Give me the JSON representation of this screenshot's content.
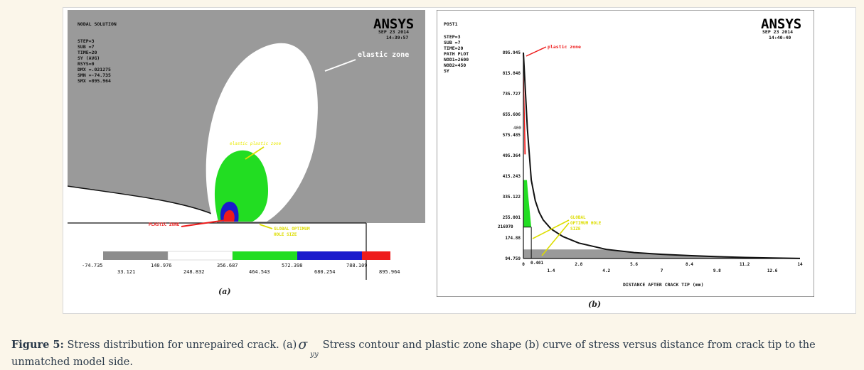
{
  "panel_a": {
    "header": [
      "NODAL SOLUTION",
      "STEP=3",
      "SUB =7",
      "TIME=20",
      "SY       (AVG)",
      "RSYS=0",
      "DMX =.021275",
      "SMN =-74.735",
      "SMX =895.964"
    ],
    "logo": "ANSYS",
    "date": "SEP 23 2014",
    "time": "14:39:57",
    "labels": {
      "elastic_zone": "elastic zone",
      "elastic_plastic_zone": "elastic plastic zone",
      "plastic_zone": "PLASTIC ZONE",
      "hole_size": [
        "GLOBAL OPTIMUM",
        "HOLE SIZE"
      ]
    },
    "legend_top": [
      "-74.735",
      "140.976",
      "356.687",
      "572.398",
      "788.109"
    ],
    "legend_bottom": [
      "33.121",
      "248.832",
      "464.543",
      "680.254",
      "895.964"
    ],
    "legend_colors": [
      "#8c8c8c",
      "#ffffff",
      "#22dd22",
      "#1a1acc",
      "#ee1c1c"
    ],
    "panel_label": "(a)"
  },
  "panel_b": {
    "header": [
      "POST1",
      "STEP=3",
      "SUB =7",
      "TIME=20",
      "PATH PLOT",
      "NOD1=2600",
      "NOD2=450",
      "SY"
    ],
    "logo": "ANSYS",
    "date": "SEP 23 2014",
    "time": "14:40:40",
    "labels": {
      "plastic_zone": "plastic zone",
      "hole_size": [
        "GLOBAL",
        "OPTIMUM HOLE",
        "SIZE"
      ],
      "marker_400": "400",
      "marker_216": "216970",
      "marker_x": "0.401"
    },
    "panel_label": "(b)"
  },
  "chart_data": {
    "type": "line",
    "xlabel": "DISTANCE AFTER CRACK TIP (mm)",
    "ylabel": "",
    "x_ticks_top": [
      "0",
      "2.8",
      "5.6",
      "8.4",
      "11.2",
      "14"
    ],
    "x_ticks_bottom": [
      "1.4",
      "4.2",
      "7",
      "9.8",
      "12.6"
    ],
    "y_ticks": [
      "895.945",
      "815.848",
      "735.727",
      "655.606",
      "575.485",
      "495.364",
      "415.243",
      "335.122",
      "255.001",
      "174.88",
      "94.759"
    ],
    "xlim": [
      0,
      14
    ],
    "ylim": [
      94.759,
      895.945
    ],
    "series": [
      {
        "x": [
          0,
          0.2,
          0.4,
          0.6,
          0.8,
          1.0,
          1.4,
          2.0,
          2.8,
          4.2,
          5.6,
          7,
          8.4,
          9.8,
          11.2,
          12.6,
          14
        ],
        "y": [
          895.9,
          600,
          400,
          320,
          275,
          245,
          210,
          180,
          155,
          130,
          118,
          111,
          106,
          102,
          99,
          97,
          95
        ]
      }
    ]
  },
  "caption": {
    "bold": "Figure 5:",
    "text1": "Stress distribution for unrepaired crack. (a)",
    "symbol": "σ",
    "subscript": "yy",
    "text2": "Stress contour and plastic zone shape (b) curve  of  stress versus distance from crack tip to  the unmatched model side."
  }
}
